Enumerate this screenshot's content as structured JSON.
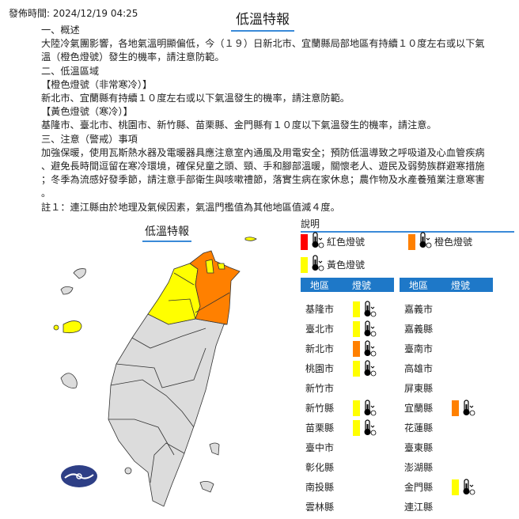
{
  "header": {
    "timestamp": "發佈時間: 2024/12/19 04:25",
    "title": "低溫特報"
  },
  "body": [
    "一、概述",
    "大陸冷氣團影響，各地氣溫明顯偏低，今（１９）日新北市、宜蘭縣局部地區有持續１０度左右或以下氣",
    "溫（橙色燈號）發生的機率，請注意防範。",
    "二、低溫區域",
    "【橙色燈號（非常寒冷）】",
    "新北市、宜蘭縣有持續１０度左右或以下氣溫發生的機率，請注意防範。",
    "【黃色燈號（寒冷）】",
    "基隆市、臺北市、桃園市、新竹縣、苗栗縣、金門縣有１０度以下氣溫發生的機率，請注意。",
    "三、注意（警戒）事項",
    "加強保暖，使用瓦斯熱水器及電暖器具應注意室內通風及用電安全；預防低溫導致之呼吸道及心血管疾病",
    "、避免長時間逗留在寒冷環境，確保兒童之頭、頸、手和腳部溫暖，關懷老人、遊民及弱勢族群避寒措施",
    "；冬季為流感好發季節，請注意手部衛生與咳嗽禮節，落實生病在家休息；農作物及水產養殖業注意寒害",
    "。",
    "註１：連江縣由於地理及氣候因素，氣溫門檻值為其他地區值減４度。"
  ],
  "map": {
    "title": "低溫特報",
    "colors": {
      "orange": "#ff8000",
      "yellow": "#ffff00",
      "grey": "#dcdcdc",
      "logo": "#2e3f86"
    }
  },
  "legend": {
    "heading": "說明",
    "red": "紅色燈號",
    "orange": "橙色燈號",
    "yellow": "黃色燈號",
    "colors": {
      "red": "#ff0000",
      "orange": "#ff8000",
      "yellow": "#ffff00"
    }
  },
  "table": {
    "col_region": "地區",
    "col_signal": "燈號",
    "header_color": "#1e78c8",
    "left": [
      {
        "name": "基隆市",
        "level": "yellow"
      },
      {
        "name": "臺北市",
        "level": "yellow"
      },
      {
        "name": "新北市",
        "level": "orange"
      },
      {
        "name": "桃園市",
        "level": "yellow"
      },
      {
        "name": "新竹市",
        "level": ""
      },
      {
        "name": "新竹縣",
        "level": "yellow"
      },
      {
        "name": "苗栗縣",
        "level": "yellow"
      },
      {
        "name": "臺中市",
        "level": ""
      },
      {
        "name": "彰化縣",
        "level": ""
      },
      {
        "name": "南投縣",
        "level": ""
      },
      {
        "name": "雲林縣",
        "level": ""
      }
    ],
    "right": [
      {
        "name": "嘉義市",
        "level": ""
      },
      {
        "name": "嘉義縣",
        "level": ""
      },
      {
        "name": "臺南市",
        "level": ""
      },
      {
        "name": "高雄市",
        "level": ""
      },
      {
        "name": "屏東縣",
        "level": ""
      },
      {
        "name": "宜蘭縣",
        "level": "orange"
      },
      {
        "name": "花蓮縣",
        "level": ""
      },
      {
        "name": "臺東縣",
        "level": ""
      },
      {
        "name": "澎湖縣",
        "level": ""
      },
      {
        "name": "金門縣",
        "level": "yellow"
      },
      {
        "name": "連江縣",
        "level": ""
      }
    ]
  }
}
